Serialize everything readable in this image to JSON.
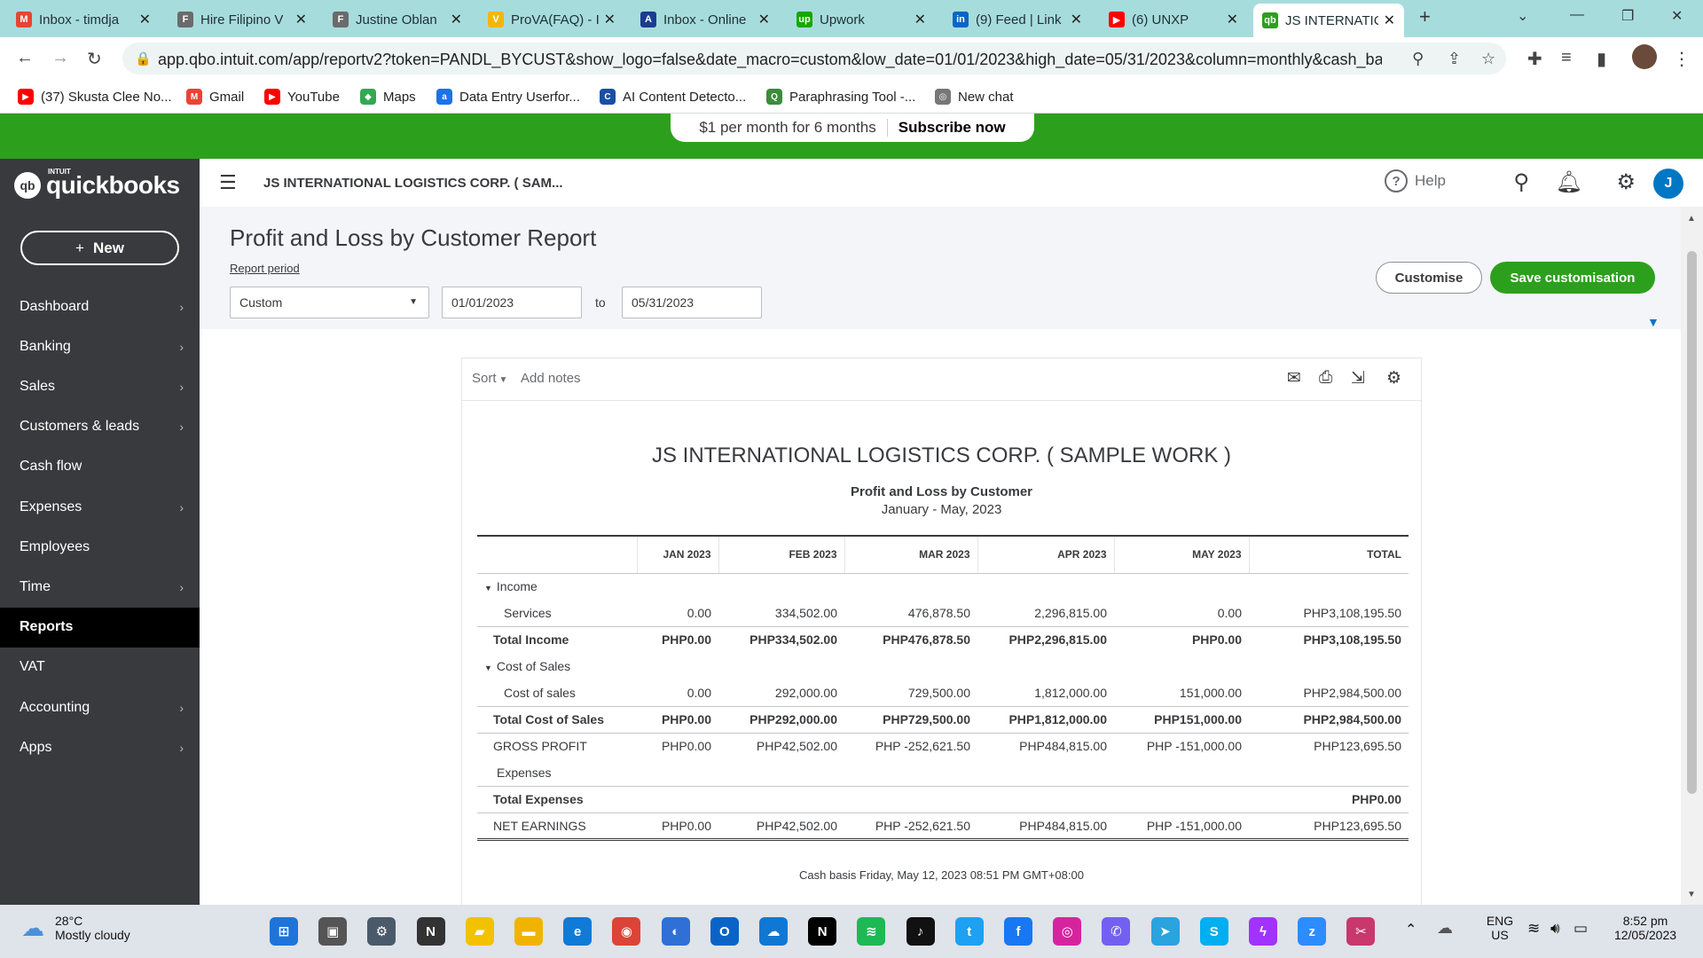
{
  "browser": {
    "tabs": [
      {
        "title": "Inbox - timdja",
        "icon": "gmail-icon",
        "color": "#ea4335",
        "glyph": "M"
      },
      {
        "title": "Hire Filipino V",
        "icon": "page-icon",
        "color": "#6b6b6b",
        "glyph": "F"
      },
      {
        "title": "Justine Oblan",
        "icon": "page-icon",
        "color": "#6b6b6b",
        "glyph": "F"
      },
      {
        "title": "ProVA(FAQ) - I",
        "icon": "prova-icon",
        "color": "#f2b705",
        "glyph": "V"
      },
      {
        "title": "Inbox - Online",
        "icon": "proton-icon",
        "color": "#1a3d8f",
        "glyph": "A"
      },
      {
        "title": "Upwork",
        "icon": "upwork-icon",
        "color": "#14a800",
        "glyph": "up"
      },
      {
        "title": "(9) Feed | Link",
        "icon": "linkedin-icon",
        "color": "#0a66c2",
        "glyph": "in"
      },
      {
        "title": "(6) UNXP",
        "icon": "youtube-icon",
        "color": "#ff0000",
        "glyph": "▶"
      },
      {
        "title": "JS INTERNATIC",
        "icon": "quickbooks-icon",
        "color": "#2ca01c",
        "glyph": "qb"
      }
    ],
    "url": "app.qbo.intuit.com/app/reportv2?token=PANDL_BYCUST&show_logo=false&date_macro=custom&low_date=01/01/2023&high_date=05/31/2023&column=monthly&cash_basis=...",
    "bookmarks": [
      {
        "label": "(37) Skusta Clee No...",
        "icon": "youtube-icon",
        "color": "#ff0000",
        "glyph": "▶"
      },
      {
        "label": "Gmail",
        "icon": "gmail-icon",
        "color": "#ea4335",
        "glyph": "M"
      },
      {
        "label": "YouTube",
        "icon": "youtube-icon",
        "color": "#ff0000",
        "glyph": "▶"
      },
      {
        "label": "Maps",
        "icon": "maps-icon",
        "color": "#34a853",
        "glyph": "◆"
      },
      {
        "label": "Data Entry Userfor...",
        "icon": "data-entry-icon",
        "color": "#1a73e8",
        "glyph": "a"
      },
      {
        "label": "AI Content Detecto...",
        "icon": "copyleaks-icon",
        "color": "#1a4fa3",
        "glyph": "C"
      },
      {
        "label": "Paraphrasing Tool -...",
        "icon": "quillbot-icon",
        "color": "#3c8c3c",
        "glyph": "Q"
      },
      {
        "label": "New chat",
        "icon": "chatgpt-icon",
        "color": "#777777",
        "glyph": "◎"
      }
    ]
  },
  "promo": {
    "text": "$1 per month for 6 months",
    "cta": "Subscribe now"
  },
  "sidebar": {
    "brand_small": "INTUIT",
    "brand": "quickbooks",
    "new_label": "New",
    "items": [
      {
        "label": "Dashboard",
        "chevron": true
      },
      {
        "label": "Banking",
        "chevron": true
      },
      {
        "label": "Sales",
        "chevron": true
      },
      {
        "label": "Customers & leads",
        "chevron": true
      },
      {
        "label": "Cash flow",
        "chevron": false
      },
      {
        "label": "Expenses",
        "chevron": true
      },
      {
        "label": "Employees",
        "chevron": false
      },
      {
        "label": "Time",
        "chevron": true
      },
      {
        "label": "Reports",
        "chevron": false,
        "active": true
      },
      {
        "label": "VAT",
        "chevron": false
      },
      {
        "label": "Accounting",
        "chevron": true
      },
      {
        "label": "Apps",
        "chevron": true
      }
    ]
  },
  "header": {
    "company": "JS INTERNATIONAL LOGISTICS CORP. ( SAM...",
    "help": "Help",
    "avatar_initial": "J"
  },
  "page": {
    "title": "Profit and Loss by Customer Report",
    "report_period_label": "Report period",
    "period_value": "Custom",
    "date_from": "01/01/2023",
    "to_label": "to",
    "date_to": "05/31/2023",
    "customise_label": "Customise",
    "save_label": "Save customisation"
  },
  "report": {
    "sort_label": "Sort",
    "add_notes_label": "Add notes",
    "company": "JS INTERNATIONAL LOGISTICS CORP. ( SAMPLE WORK )",
    "title": "Profit and Loss by Customer",
    "period": "January - May, 2023",
    "columns": [
      "",
      "JAN 2023",
      "FEB 2023",
      "MAR 2023",
      "APR 2023",
      "MAY 2023",
      "TOTAL"
    ],
    "rows": [
      {
        "type": "section",
        "label": "Income",
        "values": [
          "",
          "",
          "",
          "",
          "",
          ""
        ]
      },
      {
        "type": "detail",
        "label": "Services",
        "values": [
          "0.00",
          "334,502.00",
          "476,878.50",
          "2,296,815.00",
          "0.00",
          "PHP3,108,195.50"
        ]
      },
      {
        "type": "total",
        "label": "Total Income",
        "values": [
          "PHP0.00",
          "PHP334,502.00",
          "PHP476,878.50",
          "PHP2,296,815.00",
          "PHP0.00",
          "PHP3,108,195.50"
        ]
      },
      {
        "type": "section",
        "label": "Cost of Sales",
        "values": [
          "",
          "",
          "",
          "",
          "",
          ""
        ]
      },
      {
        "type": "detail",
        "label": "Cost of sales",
        "values": [
          "0.00",
          "292,000.00",
          "729,500.00",
          "1,812,000.00",
          "151,000.00",
          "PHP2,984,500.00"
        ]
      },
      {
        "type": "total",
        "label": "Total Cost of Sales",
        "values": [
          "PHP0.00",
          "PHP292,000.00",
          "PHP729,500.00",
          "PHP1,812,000.00",
          "PHP151,000.00",
          "PHP2,984,500.00"
        ]
      },
      {
        "type": "gp",
        "label": "GROSS PROFIT",
        "values": [
          "PHP0.00",
          "PHP42,502.00",
          "PHP -252,621.50",
          "PHP484,815.00",
          "PHP -151,000.00",
          "PHP123,695.50"
        ]
      },
      {
        "type": "plain",
        "label": "Expenses",
        "values": [
          "",
          "",
          "",
          "",
          "",
          ""
        ]
      },
      {
        "type": "total",
        "label": "Total Expenses",
        "values": [
          "",
          "",
          "",
          "",
          "",
          "PHP0.00"
        ]
      },
      {
        "type": "net",
        "label": "NET EARNINGS",
        "values": [
          "PHP0.00",
          "PHP42,502.00",
          "PHP -252,621.50",
          "PHP484,815.00",
          "PHP -151,000.00",
          "PHP123,695.50"
        ]
      }
    ],
    "footer": "Cash basis  Friday, May 12, 2023  08:51 PM GMT+08:00"
  },
  "taskbar": {
    "temp": "28°C",
    "weather": "Mostly cloudy",
    "lang": "ENG",
    "region": "US",
    "time": "8:52 pm",
    "date": "12/05/2023",
    "apps": [
      {
        "name": "start-icon",
        "color": "#1e74d9",
        "glyph": "⊞"
      },
      {
        "name": "task-view-icon",
        "color": "#555555",
        "glyph": "▣"
      },
      {
        "name": "settings-icon",
        "color": "#4a5a6a",
        "glyph": "⚙"
      },
      {
        "name": "notion-icon",
        "color": "#333333",
        "glyph": "N"
      },
      {
        "name": "sticky-notes-icon",
        "color": "#f2c200",
        "glyph": "▰"
      },
      {
        "name": "file-explorer-icon",
        "color": "#f0b400",
        "glyph": "▬"
      },
      {
        "name": "edge-icon",
        "color": "#0f7bd6",
        "glyph": "e"
      },
      {
        "name": "chrome-icon",
        "color": "#db4437",
        "glyph": "◉"
      },
      {
        "name": "vpn-icon",
        "color": "#2f6fd6",
        "glyph": "◐"
      },
      {
        "name": "outlook-icon",
        "color": "#0a64c8",
        "glyph": "O"
      },
      {
        "name": "onedrive-icon",
        "color": "#0f78d4",
        "glyph": "☁"
      },
      {
        "name": "netflix-icon",
        "color": "#000000",
        "glyph": "N"
      },
      {
        "name": "spotify-icon",
        "color": "#1db954",
        "glyph": "≋"
      },
      {
        "name": "tiktok-icon",
        "color": "#111111",
        "glyph": "♪"
      },
      {
        "name": "twitter-icon",
        "color": "#1da1f2",
        "glyph": "t"
      },
      {
        "name": "facebook-icon",
        "color": "#1877f2",
        "glyph": "f"
      },
      {
        "name": "instagram-icon",
        "color": "#d6249f",
        "glyph": "◎"
      },
      {
        "name": "viber-icon",
        "color": "#7360f2",
        "glyph": "✆"
      },
      {
        "name": "telegram-icon",
        "color": "#2aa3df",
        "glyph": "➤"
      },
      {
        "name": "skype-icon",
        "color": "#00aff0",
        "glyph": "S"
      },
      {
        "name": "messenger-icon",
        "color": "#a033ff",
        "glyph": "ϟ"
      },
      {
        "name": "zoom-icon",
        "color": "#2d8cff",
        "glyph": "z"
      },
      {
        "name": "snipping-tool-icon",
        "color": "#c8386d",
        "glyph": "✂"
      }
    ]
  }
}
